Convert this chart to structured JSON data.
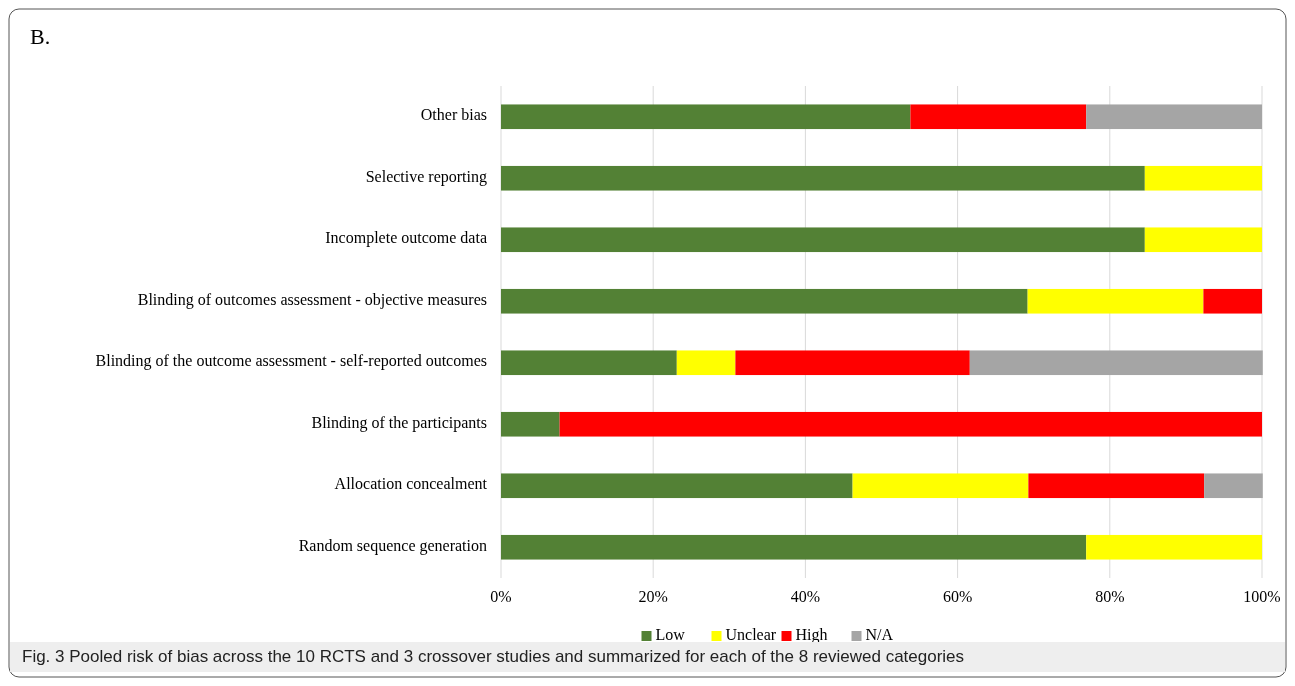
{
  "chart_data": {
    "type": "bar",
    "orientation": "horizontal",
    "stacked": true,
    "title": "B.",
    "categories": [
      "Other bias",
      "Selective reporting",
      "Incomplete outcome data",
      "Blinding of outcomes assessment - objective measures",
      "Blinding of the outcome assessment - self-reported outcomes",
      "Blinding of the participants",
      "Allocation concealment",
      "Random sequence generation"
    ],
    "series": [
      {
        "name": "Low",
        "color": "#538135",
        "values": [
          53.8,
          84.6,
          84.6,
          69.2,
          23.1,
          7.7,
          46.2,
          76.9
        ]
      },
      {
        "name": "Unclear",
        "color": "#ffff00",
        "values": [
          null,
          15.4,
          15.4,
          23.1,
          7.7,
          null,
          23.1,
          23.1
        ]
      },
      {
        "name": "High",
        "color": "#ff0000",
        "values": [
          23.1,
          null,
          null,
          7.7,
          30.8,
          92.3,
          23.1,
          null
        ]
      },
      {
        "name": "N/A",
        "color": "#a5a5a5",
        "values": [
          23.1,
          null,
          null,
          null,
          38.5,
          null,
          7.7,
          null
        ]
      }
    ],
    "xlim": [
      0,
      100
    ],
    "xticks": [
      {
        "value": 0,
        "label": "0%"
      },
      {
        "value": 20,
        "label": "20%"
      },
      {
        "value": 40,
        "label": "40%"
      },
      {
        "value": 60,
        "label": "60%"
      },
      {
        "value": 80,
        "label": "80%"
      },
      {
        "value": 100,
        "label": "100%"
      }
    ],
    "grid": "x",
    "legend": "bottom",
    "annotations": [
      "Fig. 3  Pooled risk of bias across the 10 RCTS and 3 crossover studies and summarized for each of the 8 reviewed categories"
    ]
  }
}
